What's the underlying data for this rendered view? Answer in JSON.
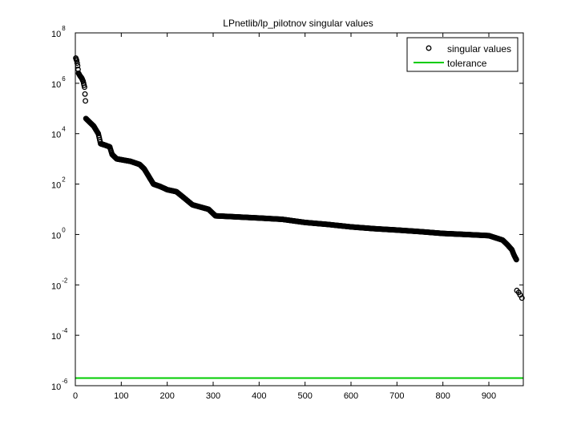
{
  "chart_data": {
    "type": "scatter",
    "title": "LPnetlib/lp_pilotnov singular values",
    "xlabel": "",
    "ylabel": "",
    "xlim": [
      0,
      975
    ],
    "ylim": [
      1e-06,
      100000000.0
    ],
    "yscale": "log",
    "x_ticks": [
      0,
      100,
      200,
      300,
      400,
      500,
      600,
      700,
      800,
      900
    ],
    "y_tick_exponents": [
      -6,
      -4,
      -2,
      0,
      2,
      4,
      6,
      8
    ],
    "y_tick_base": "10",
    "grid": false,
    "legend_position": "top-right",
    "legend": [
      "singular values",
      "tolerance"
    ],
    "colors": {
      "singular_values": "#000000",
      "tolerance": "#00cc00"
    },
    "singular_values_curve": [
      [
        1,
        10000000.0
      ],
      [
        3,
        8000000.0
      ],
      [
        5,
        5000000.0
      ],
      [
        7,
        2500000.0
      ],
      [
        10,
        2000000.0
      ],
      [
        14,
        1600000.0
      ],
      [
        17,
        1200000.0
      ],
      [
        20,
        700000.0
      ],
      [
        22,
        200000.0
      ],
      [
        23,
        40000.0
      ],
      [
        30,
        30000.0
      ],
      [
        40,
        20000.0
      ],
      [
        50,
        10000.0
      ],
      [
        55,
        4000.0
      ],
      [
        65,
        3500.0
      ],
      [
        75,
        3000.0
      ],
      [
        80,
        1500.0
      ],
      [
        90,
        1000.0
      ],
      [
        120,
        800
      ],
      [
        140,
        600
      ],
      [
        150,
        400
      ],
      [
        160,
        200
      ],
      [
        170,
        100
      ],
      [
        185,
        80
      ],
      [
        200,
        60
      ],
      [
        220,
        50
      ],
      [
        235,
        30
      ],
      [
        255,
        15
      ],
      [
        290,
        10
      ],
      [
        305,
        5.5
      ],
      [
        350,
        5.0
      ],
      [
        400,
        4.5
      ],
      [
        450,
        4.0
      ],
      [
        500,
        3.0
      ],
      [
        550,
        2.5
      ],
      [
        600,
        2.0
      ],
      [
        650,
        1.7
      ],
      [
        700,
        1.5
      ],
      [
        750,
        1.3
      ],
      [
        800,
        1.1
      ],
      [
        850,
        1.0
      ],
      [
        900,
        0.9
      ],
      [
        930,
        0.6
      ],
      [
        940,
        0.4
      ],
      [
        950,
        0.25
      ],
      [
        955,
        0.15
      ],
      [
        960,
        0.1
      ]
    ],
    "singular_values_tail": [
      [
        961,
        0.006
      ],
      [
        965,
        0.005
      ],
      [
        968,
        0.004
      ],
      [
        972,
        0.003
      ]
    ],
    "n_points": 975,
    "tolerance": {
      "y": 2e-06,
      "x_range": [
        0,
        975
      ]
    }
  }
}
